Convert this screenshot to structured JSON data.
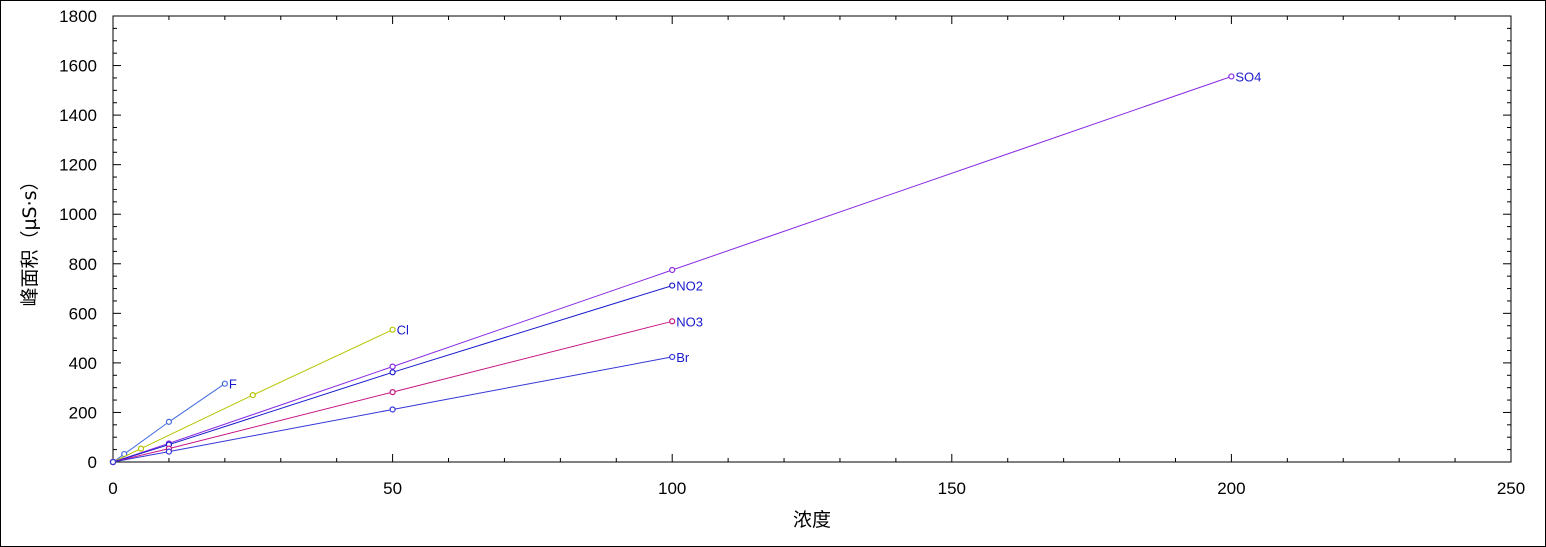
{
  "chart_data": {
    "type": "line",
    "xlabel": "浓度",
    "ylabel": "峰面积（µS·s）",
    "xlim": [
      0,
      250
    ],
    "ylim": [
      0,
      1800
    ],
    "x_ticks": [
      "0",
      "50",
      "100",
      "150",
      "200",
      "250"
    ],
    "y_ticks": [
      "0",
      "200",
      "400",
      "600",
      "800",
      "1000",
      "1200",
      "1400",
      "1600",
      "1800"
    ],
    "grid": false,
    "series": [
      {
        "name": "F",
        "color": "#4169e1",
        "x": [
          0,
          2,
          10,
          20
        ],
        "y": [
          0,
          32,
          162,
          316
        ]
      },
      {
        "name": "Cl",
        "color": "#b5c400",
        "x": [
          0,
          5,
          25,
          50
        ],
        "y": [
          0,
          54,
          270,
          534
        ]
      },
      {
        "name": "SO4",
        "color": "#8a2be2",
        "x": [
          0,
          10,
          50,
          100,
          200
        ],
        "y": [
          0,
          75,
          385,
          775,
          1556
        ]
      },
      {
        "name": "NO2",
        "color": "#1a1acd",
        "x": [
          0,
          10,
          50,
          100
        ],
        "y": [
          0,
          70,
          362,
          712
        ]
      },
      {
        "name": "NO3",
        "color": "#c71585",
        "x": [
          0,
          10,
          50,
          100
        ],
        "y": [
          0,
          54,
          282,
          568
        ]
      },
      {
        "name": "Br",
        "color": "#3535d8",
        "x": [
          0,
          10,
          50,
          100
        ],
        "y": [
          0,
          42,
          212,
          424
        ]
      }
    ],
    "label_color": "#1a1acd"
  }
}
